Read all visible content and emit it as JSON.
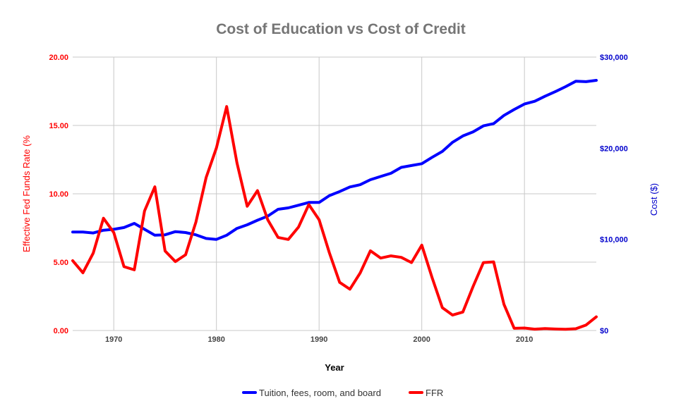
{
  "chart_data": {
    "type": "line",
    "title": "Cost of Education vs Cost of Credit",
    "xlabel": "Year",
    "ylabel_left": "Effective Fed Funds Rate (%",
    "ylabel_right": "Cost ($)",
    "x_ticks": [
      "1970",
      "1980",
      "1990",
      "2000",
      "2010"
    ],
    "y_left_ticks": [
      "0.00",
      "5.00",
      "10.00",
      "15.00",
      "20.00"
    ],
    "y_right_ticks": [
      "$0",
      "$10,000",
      "$20,000",
      "$30,000"
    ],
    "xlim": [
      1966,
      2017
    ],
    "ylim_left": [
      0,
      20
    ],
    "ylim_right": [
      0,
      30000
    ],
    "grid": true,
    "legend_position": "bottom",
    "x": [
      1966,
      1967,
      1968,
      1969,
      1970,
      1971,
      1972,
      1973,
      1974,
      1975,
      1976,
      1977,
      1978,
      1979,
      1980,
      1981,
      1982,
      1983,
      1984,
      1985,
      1986,
      1987,
      1988,
      1989,
      1990,
      1991,
      1992,
      1993,
      1994,
      1995,
      1996,
      1997,
      1998,
      1999,
      2000,
      2001,
      2002,
      2003,
      2004,
      2005,
      2006,
      2007,
      2008,
      2009,
      2010,
      2011,
      2012,
      2013,
      2014,
      2015,
      2016,
      2017
    ],
    "series": [
      {
        "name": "Tuition, fees, room, and board",
        "axis": "right",
        "color": "#0000ff",
        "values": [
          10800,
          10800,
          10700,
          11000,
          11100,
          11300,
          11750,
          11100,
          10450,
          10500,
          10850,
          10750,
          10500,
          10100,
          10000,
          10450,
          11200,
          11600,
          12100,
          12550,
          13300,
          13450,
          13750,
          14050,
          14050,
          14800,
          15250,
          15750,
          16000,
          16550,
          16900,
          17250,
          17900,
          18100,
          18300,
          19000,
          19650,
          20650,
          21350,
          21800,
          22450,
          22700,
          23600,
          24250,
          24850,
          25150,
          25700,
          26200,
          26750,
          27350,
          27300,
          27450
        ]
      },
      {
        "name": "FFR",
        "axis": "left",
        "color": "#ff0000",
        "values": [
          5.11,
          4.22,
          5.66,
          8.21,
          7.17,
          4.67,
          4.44,
          8.74,
          10.51,
          5.82,
          5.04,
          5.54,
          7.93,
          11.19,
          13.36,
          16.38,
          12.26,
          9.09,
          10.23,
          8.1,
          6.81,
          6.66,
          7.57,
          9.21,
          8.1,
          5.69,
          3.52,
          3.02,
          4.21,
          5.83,
          5.3,
          5.46,
          5.35,
          4.97,
          6.24,
          3.88,
          1.67,
          1.13,
          1.35,
          3.22,
          4.97,
          5.02,
          1.92,
          0.16,
          0.18,
          0.1,
          0.14,
          0.11,
          0.09,
          0.13,
          0.4,
          1.0
        ]
      }
    ]
  }
}
